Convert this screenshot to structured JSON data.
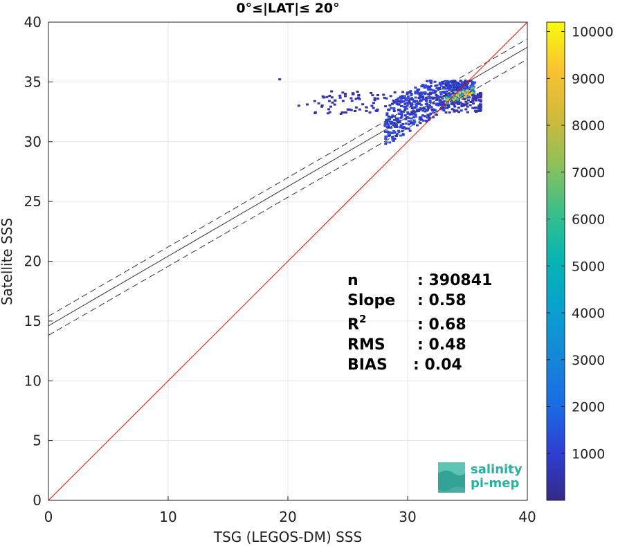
{
  "chart_data": {
    "type": "scatter",
    "title": "0°≤|LAT|≤ 20°",
    "xlabel": "TSG (LEGOS-DM) SSS",
    "ylabel": "Satellite SSS",
    "xlim": [
      0,
      40
    ],
    "ylim": [
      0,
      40
    ],
    "xticks": [
      0,
      10,
      20,
      30,
      40
    ],
    "yticks": [
      0,
      5,
      10,
      15,
      20,
      25,
      30,
      35,
      40
    ],
    "grid": true,
    "stats": [
      {
        "label": "n",
        "value": ": 390841"
      },
      {
        "label": "Slope",
        "value": ": 0.58"
      },
      {
        "label": "R",
        "sup": "2",
        "value": ": 0.68"
      },
      {
        "label": "RMS",
        "value": ": 0.48"
      },
      {
        "label": "BIAS",
        "value": ": 0.04"
      }
    ],
    "lines": {
      "one_to_one": {
        "color": "#ff0000",
        "points": [
          [
            0,
            0
          ],
          [
            40,
            40
          ]
        ]
      },
      "fit": {
        "color": "#333333",
        "points": [
          [
            0,
            14.6
          ],
          [
            40,
            37.9
          ]
        ]
      },
      "fit_upper": {
        "color": "#333333",
        "dash": true,
        "points": [
          [
            0,
            15.4
          ],
          [
            40,
            38.6
          ]
        ]
      },
      "fit_lower": {
        "color": "#333333",
        "dash": true,
        "points": [
          [
            0,
            13.8
          ],
          [
            40,
            36.9
          ]
        ]
      }
    },
    "density_clusters": [
      {
        "x": [
          22,
          36
        ],
        "y": [
          31.5,
          35.4
        ],
        "density": "low"
      },
      {
        "x": [
          28,
          35.5
        ],
        "y": [
          30.5,
          35.2
        ],
        "density": "medium"
      },
      {
        "x": [
          33,
          35.5
        ],
        "y": [
          33.5,
          35.3
        ],
        "density": "high"
      }
    ],
    "colorbar": {
      "ticks": [
        1000,
        2000,
        3000,
        4000,
        5000,
        6000,
        7000,
        8000,
        9000,
        10000
      ],
      "range": [
        0,
        10200
      ],
      "colormap": "parula"
    }
  },
  "logo": {
    "line1": "salinity",
    "line2": "pi-mep",
    "color": "#2ab0a0"
  }
}
